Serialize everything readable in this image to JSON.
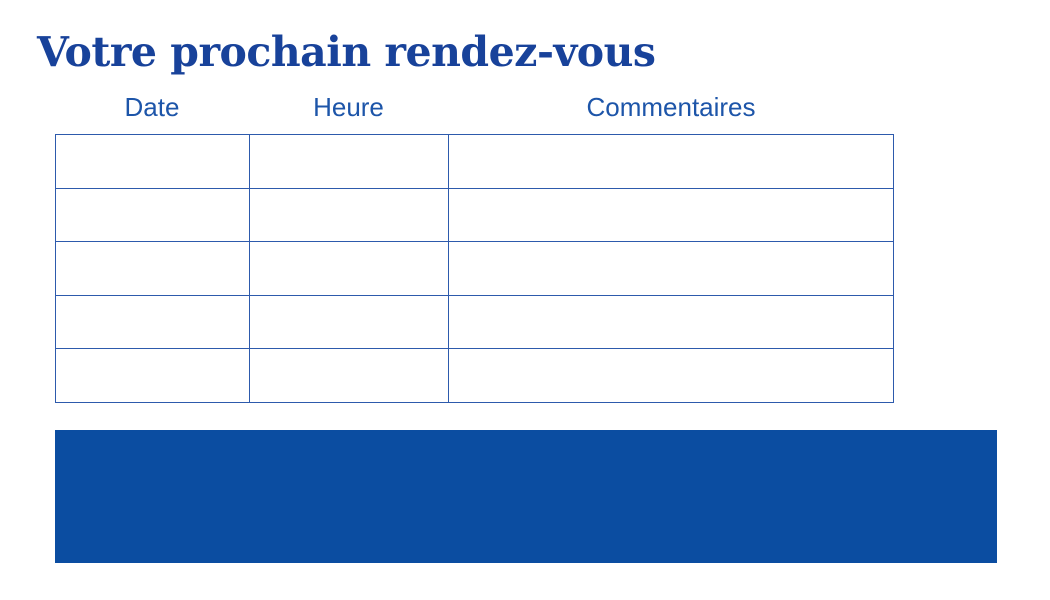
{
  "page": {
    "title": "Votre prochain rendez-vous"
  },
  "table": {
    "headers": [
      "Date",
      "Heure",
      "Commentaires"
    ],
    "rows": [
      [
        "",
        "",
        ""
      ],
      [
        "",
        "",
        ""
      ],
      [
        "",
        "",
        ""
      ],
      [
        "",
        "",
        ""
      ],
      [
        "",
        "",
        ""
      ]
    ]
  },
  "colors": {
    "title_text": "#18429a",
    "header_text": "#1d55a9",
    "table_border": "#2d5aac",
    "banner_fill": "#0b4da1",
    "background": "#ffffff"
  }
}
